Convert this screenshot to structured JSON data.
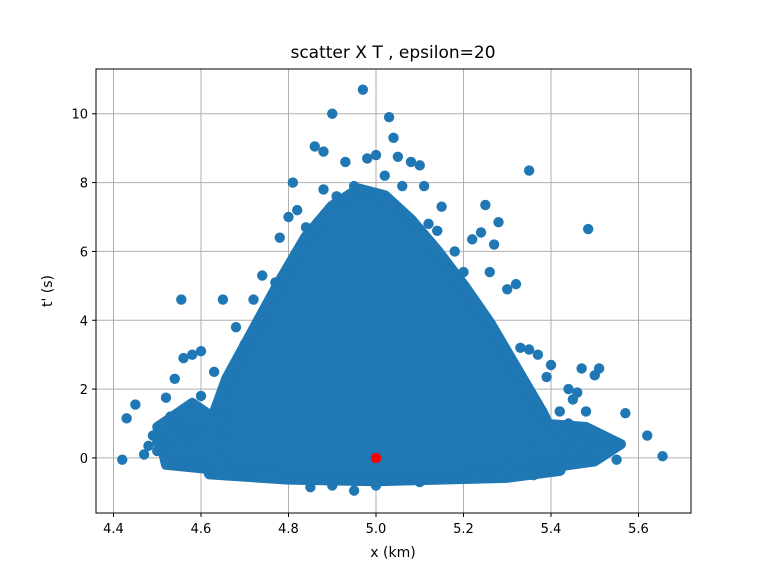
{
  "chart_data": {
    "type": "scatter",
    "title": "scatter X T , epsilon=20",
    "xlabel": "x (km)",
    "ylabel": "t' (s)",
    "xlim": [
      4.36,
      5.72
    ],
    "ylim": [
      -1.6,
      11.3
    ],
    "grid": true,
    "x_ticks": [
      4.4,
      4.6,
      4.8,
      5.0,
      5.2,
      5.4,
      5.6
    ],
    "x_tick_labels": [
      "4.4",
      "4.6",
      "4.8",
      "5.0",
      "5.2",
      "5.4",
      "5.6"
    ],
    "y_ticks": [
      0,
      2,
      4,
      6,
      8,
      10
    ],
    "y_tick_labels": [
      "0",
      "2",
      "4",
      "6",
      "8",
      "10"
    ],
    "series": [
      {
        "color": "#1f77b4",
        "points": [
          [
            4.42,
            -0.05
          ],
          [
            4.43,
            1.15
          ],
          [
            4.45,
            1.55
          ],
          [
            4.47,
            0.1
          ],
          [
            4.49,
            0.65
          ],
          [
            4.5,
            0.45
          ],
          [
            4.52,
            1.75
          ],
          [
            4.53,
            1.2
          ],
          [
            4.54,
            2.3
          ],
          [
            4.55,
            0.85
          ],
          [
            4.555,
            4.6
          ],
          [
            4.56,
            2.9
          ],
          [
            4.58,
            3.0
          ],
          [
            4.6,
            3.1
          ],
          [
            4.6,
            1.8
          ],
          [
            4.63,
            2.5
          ],
          [
            4.65,
            4.6
          ],
          [
            4.66,
            1.3
          ],
          [
            4.68,
            3.8
          ],
          [
            4.7,
            3.3
          ],
          [
            4.72,
            4.6
          ],
          [
            4.74,
            5.3
          ],
          [
            4.75,
            3.95
          ],
          [
            4.77,
            5.1
          ],
          [
            4.78,
            6.4
          ],
          [
            4.8,
            7.0
          ],
          [
            4.81,
            8.0
          ],
          [
            4.82,
            7.2
          ],
          [
            4.84,
            6.7
          ],
          [
            4.86,
            9.05
          ],
          [
            4.88,
            8.9
          ],
          [
            4.9,
            10.0
          ],
          [
            4.88,
            7.8
          ],
          [
            4.91,
            7.6
          ],
          [
            4.93,
            8.6
          ],
          [
            4.95,
            7.9
          ],
          [
            4.97,
            10.7
          ],
          [
            4.98,
            8.7
          ],
          [
            5.0,
            8.8
          ],
          [
            5.02,
            8.2
          ],
          [
            5.03,
            9.9
          ],
          [
            5.04,
            9.3
          ],
          [
            5.05,
            8.75
          ],
          [
            5.06,
            7.9
          ],
          [
            5.08,
            8.6
          ],
          [
            5.1,
            8.5
          ],
          [
            5.11,
            7.9
          ],
          [
            5.12,
            6.8
          ],
          [
            5.14,
            6.6
          ],
          [
            5.15,
            7.3
          ],
          [
            5.18,
            6.0
          ],
          [
            5.2,
            5.4
          ],
          [
            5.22,
            6.35
          ],
          [
            5.24,
            6.55
          ],
          [
            5.25,
            7.35
          ],
          [
            5.26,
            5.4
          ],
          [
            5.27,
            6.2
          ],
          [
            5.28,
            6.85
          ],
          [
            5.3,
            4.9
          ],
          [
            5.32,
            5.05
          ],
          [
            5.35,
            8.35
          ],
          [
            5.33,
            3.2
          ],
          [
            5.35,
            3.15
          ],
          [
            5.37,
            3.0
          ],
          [
            5.39,
            2.35
          ],
          [
            5.4,
            2.7
          ],
          [
            5.42,
            1.35
          ],
          [
            5.44,
            2.0
          ],
          [
            5.45,
            1.7
          ],
          [
            5.46,
            1.9
          ],
          [
            5.47,
            2.6
          ],
          [
            5.48,
            1.35
          ],
          [
            5.485,
            6.65
          ],
          [
            5.5,
            2.4
          ],
          [
            5.51,
            2.6
          ],
          [
            5.5,
            0.45
          ],
          [
            5.52,
            0.45
          ],
          [
            5.55,
            0.35
          ],
          [
            5.55,
            -0.05
          ],
          [
            5.57,
            1.3
          ],
          [
            5.62,
            0.65
          ],
          [
            5.655,
            0.05
          ],
          [
            5.38,
            -0.3
          ],
          [
            5.36,
            -0.5
          ],
          [
            5.3,
            -0.3
          ],
          [
            5.25,
            -0.5
          ],
          [
            5.2,
            -0.6
          ],
          [
            5.1,
            -0.7
          ],
          [
            5.0,
            -0.8
          ],
          [
            4.95,
            -0.95
          ],
          [
            4.9,
            -0.8
          ],
          [
            4.85,
            -0.85
          ],
          [
            4.82,
            -0.6
          ],
          [
            4.7,
            -0.45
          ],
          [
            4.67,
            -0.3
          ],
          [
            4.6,
            -0.15
          ],
          [
            4.55,
            -0.15
          ],
          [
            4.48,
            0.35
          ],
          [
            4.5,
            0.2
          ],
          [
            4.52,
            0.4
          ],
          [
            4.57,
            0.6
          ],
          [
            4.59,
            0.8
          ],
          [
            5.43,
            0.3
          ],
          [
            5.45,
            0.55
          ],
          [
            5.47,
            0.1
          ],
          [
            5.49,
            -0.05
          ],
          [
            5.41,
            0.85
          ],
          [
            5.44,
            1.0
          ]
        ]
      },
      {
        "color": "#ff0000",
        "points": [
          [
            5.0,
            0.0
          ]
        ]
      }
    ]
  }
}
